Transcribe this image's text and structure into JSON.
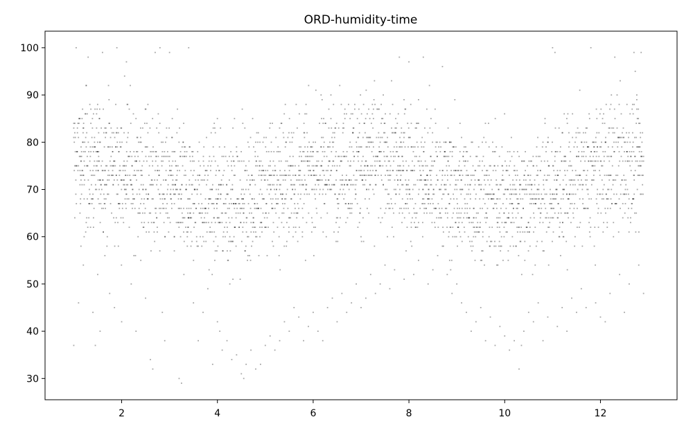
{
  "chart_data": {
    "type": "scatter",
    "title": "ORD-humidity-time",
    "xlabel": "",
    "ylabel": "",
    "xlim": [
      0.4,
      13.6
    ],
    "ylim": [
      25.5,
      103.5
    ],
    "xticks": [
      2,
      4,
      6,
      8,
      10,
      12
    ],
    "yticks": [
      30,
      40,
      50,
      60,
      70,
      80,
      90,
      100
    ],
    "grid": false,
    "legend": "none",
    "marker_color": "#000000",
    "marker_alpha": 0.35,
    "series": [
      {
        "points": [
          [
            1.0,
            37
          ],
          [
            1.05,
            100
          ],
          [
            1.1,
            46
          ],
          [
            1.15,
            58
          ],
          [
            1.2,
            54
          ],
          [
            1.3,
            98
          ],
          [
            1.35,
            62
          ],
          [
            1.4,
            44
          ],
          [
            1.45,
            37
          ],
          [
            1.5,
            52
          ],
          [
            1.55,
            40
          ],
          [
            1.6,
            99
          ],
          [
            1.65,
            56
          ],
          [
            1.7,
            60
          ],
          [
            1.75,
            48
          ],
          [
            1.85,
            45
          ],
          [
            1.9,
            100
          ],
          [
            2.0,
            42
          ],
          [
            2.1,
            97
          ],
          [
            2.2,
            50
          ],
          [
            2.3,
            40
          ],
          [
            2.4,
            55
          ],
          [
            2.5,
            47
          ],
          [
            2.6,
            34
          ],
          [
            2.65,
            32
          ],
          [
            2.7,
            99
          ],
          [
            2.8,
            100
          ],
          [
            2.85,
            44
          ],
          [
            2.9,
            38
          ],
          [
            3.0,
            99
          ],
          [
            3.1,
            57
          ],
          [
            3.2,
            30
          ],
          [
            3.25,
            29
          ],
          [
            3.3,
            52
          ],
          [
            3.4,
            100
          ],
          [
            3.5,
            46
          ],
          [
            3.6,
            38
          ],
          [
            3.7,
            44
          ],
          [
            3.8,
            49
          ],
          [
            3.9,
            33
          ],
          [
            4.0,
            42
          ],
          [
            4.05,
            40
          ],
          [
            4.1,
            36
          ],
          [
            4.2,
            38
          ],
          [
            4.3,
            34
          ],
          [
            4.4,
            35
          ],
          [
            4.5,
            31
          ],
          [
            4.55,
            30
          ],
          [
            4.6,
            33
          ],
          [
            4.7,
            36
          ],
          [
            4.8,
            32
          ],
          [
            4.9,
            33
          ],
          [
            5.0,
            37
          ],
          [
            5.1,
            39
          ],
          [
            5.2,
            36
          ],
          [
            5.3,
            38
          ],
          [
            5.4,
            42
          ],
          [
            5.5,
            40
          ],
          [
            5.6,
            45
          ],
          [
            5.7,
            43
          ],
          [
            5.8,
            38
          ],
          [
            5.9,
            41
          ],
          [
            6.0,
            44
          ],
          [
            6.1,
            40
          ],
          [
            6.2,
            38
          ],
          [
            6.3,
            45
          ],
          [
            6.4,
            47
          ],
          [
            6.5,
            42
          ],
          [
            6.6,
            48
          ],
          [
            6.7,
            44
          ],
          [
            6.8,
            46
          ],
          [
            6.9,
            50
          ],
          [
            7.0,
            45
          ],
          [
            7.1,
            47
          ],
          [
            7.2,
            52
          ],
          [
            7.3,
            48
          ],
          [
            7.4,
            50
          ],
          [
            7.5,
            54
          ],
          [
            7.6,
            49
          ],
          [
            7.7,
            53
          ],
          [
            7.8,
            98
          ],
          [
            7.9,
            51
          ],
          [
            8.0,
            97
          ],
          [
            8.1,
            52
          ],
          [
            8.2,
            55
          ],
          [
            8.3,
            98
          ],
          [
            8.4,
            50
          ],
          [
            8.5,
            53
          ],
          [
            8.6,
            56
          ],
          [
            8.7,
            96
          ],
          [
            8.8,
            52
          ],
          [
            8.9,
            48
          ],
          [
            9.0,
            50
          ],
          [
            9.1,
            46
          ],
          [
            9.2,
            44
          ],
          [
            9.3,
            40
          ],
          [
            9.4,
            42
          ],
          [
            9.5,
            45
          ],
          [
            9.6,
            38
          ],
          [
            9.7,
            43
          ],
          [
            9.8,
            37
          ],
          [
            9.9,
            41
          ],
          [
            10.0,
            39
          ],
          [
            10.1,
            36
          ],
          [
            10.2,
            38
          ],
          [
            10.3,
            32
          ],
          [
            10.35,
            37
          ],
          [
            10.4,
            40
          ],
          [
            10.5,
            44
          ],
          [
            10.6,
            42
          ],
          [
            10.7,
            46
          ],
          [
            10.8,
            38
          ],
          [
            10.9,
            43
          ],
          [
            11.0,
            100
          ],
          [
            11.05,
            99
          ],
          [
            11.1,
            41
          ],
          [
            11.2,
            45
          ],
          [
            11.3,
            40
          ],
          [
            11.4,
            47
          ],
          [
            11.5,
            44
          ],
          [
            11.6,
            49
          ],
          [
            11.7,
            45
          ],
          [
            11.8,
            100
          ],
          [
            11.9,
            46
          ],
          [
            12.0,
            43
          ],
          [
            12.1,
            42
          ],
          [
            12.2,
            48
          ],
          [
            12.3,
            98
          ],
          [
            12.4,
            52
          ],
          [
            12.5,
            44
          ],
          [
            12.6,
            50
          ],
          [
            12.7,
            99
          ],
          [
            12.8,
            54
          ],
          [
            12.85,
            99
          ],
          [
            12.9,
            48
          ]
        ],
        "dense_band": {
          "description_free": true,
          "x_range": [
            1.0,
            12.9
          ],
          "y_range": [
            50,
            95
          ]
        }
      }
    ]
  }
}
